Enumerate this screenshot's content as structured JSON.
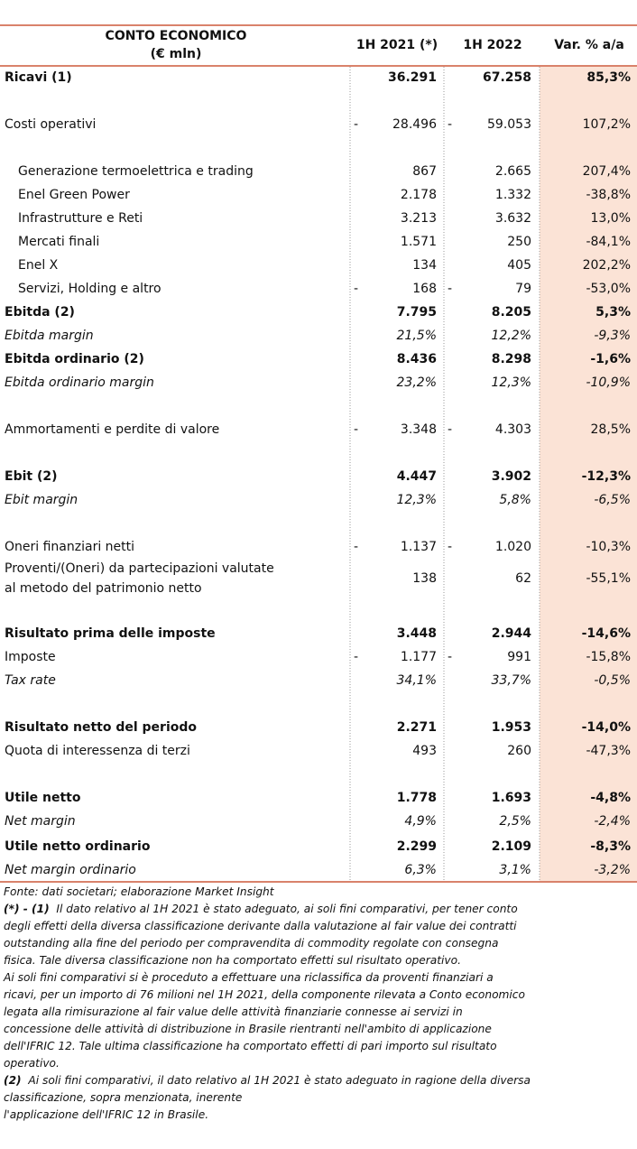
{
  "header": {
    "title": "CONTO ECONOMICO",
    "unit": "(€ mln)",
    "col1": "1H 2021 (*)",
    "col2": "1H 2022",
    "col3": "Var. % a/a"
  },
  "rows": [
    {
      "label": "Ricavi (1)",
      "style": "bold",
      "c1": "36.291",
      "c2": "67.258",
      "c3": "85,3%"
    },
    {
      "label": "Costi operativi",
      "s1": "-",
      "c1": "28.496",
      "s2": "-",
      "c2": "59.053",
      "c3": "107,2%"
    },
    {
      "label": "Generazione termoelettrica e trading",
      "style": "indent",
      "c1": "867",
      "c2": "2.665",
      "c3": "207,4%"
    },
    {
      "label": "Enel Green Power",
      "style": "indent",
      "c1": "2.178",
      "c2": "1.332",
      "c3": "-38,8%"
    },
    {
      "label": "Infrastrutture e Reti",
      "style": "indent",
      "c1": "3.213",
      "c2": "3.632",
      "c3": "13,0%"
    },
    {
      "label": "Mercati finali",
      "style": "indent",
      "c1": "1.571",
      "c2": "250",
      "c3": "-84,1%"
    },
    {
      "label": "Enel X",
      "style": "indent",
      "c1": "134",
      "c2": "405",
      "c3": "202,2%"
    },
    {
      "label": "Servizi, Holding e altro",
      "style": "indent",
      "s1": "-",
      "c1": "168",
      "s2": "-",
      "c2": "79",
      "c3": "-53,0%"
    },
    {
      "label": "Ebitda (2)",
      "style": "bold",
      "c1": "7.795",
      "c2": "8.205",
      "c3": "5,3%"
    },
    {
      "label": "Ebitda margin",
      "style": "italic",
      "c1": "21,5%",
      "c2": "12,2%",
      "c3": "-9,3%"
    },
    {
      "label": "Ebitda ordinario (2)",
      "style": "bold",
      "c1": "8.436",
      "c2": "8.298",
      "c3": "-1,6%"
    },
    {
      "label": "Ebitda ordinario margin",
      "style": "italic",
      "c1": "23,2%",
      "c2": "12,3%",
      "c3": "-10,9%"
    },
    {
      "label": "Ammortamenti e perdite di valore",
      "s1": "-",
      "c1": "3.348",
      "s2": "-",
      "c2": "4.303",
      "c3": "28,5%"
    },
    {
      "label": "Ebit (2)",
      "style": "bold",
      "c1": "4.447",
      "c2": "3.902",
      "c3": "-12,3%"
    },
    {
      "label": "Ebit margin",
      "style": "italic",
      "c1": "12,3%",
      "c2": "5,8%",
      "c3": "-6,5%"
    },
    {
      "label": "Oneri finanziari netti",
      "s1": "-",
      "c1": "1.137",
      "s2": "-",
      "c2": "1.020",
      "c3": "-10,3%"
    },
    {
      "label": [
        "Proventi/(Oneri) da partecipazioni valutate",
        "al metodo del patrimonio netto"
      ],
      "c1": "138",
      "c2": "62",
      "c3": "-55,1%"
    },
    {
      "label": "Risultato prima delle imposte",
      "style": "bold",
      "c1": "3.448",
      "c2": "2.944",
      "c3": "-14,6%"
    },
    {
      "label": "Imposte",
      "s1": "-",
      "c1": "1.177",
      "s2": "-",
      "c2": "991",
      "c3": "-15,8%"
    },
    {
      "label": "Tax rate",
      "style": "italic",
      "c1": "34,1%",
      "c2": "33,7%",
      "c3": "-0,5%"
    },
    {
      "label": "Risultato netto del periodo",
      "style": "bold",
      "c1": "2.271",
      "c2": "1.953",
      "c3": "-14,0%"
    },
    {
      "label": "Quota di interessenza di terzi",
      "c1": "493",
      "c2": "260",
      "c3": "-47,3%"
    },
    {
      "label": "Utile netto",
      "style": "bold",
      "c1": "1.778",
      "c2": "1.693",
      "c3": "-4,8%"
    },
    {
      "label": "Net margin",
      "style": "italic",
      "c1": "4,9%",
      "c2": "2,5%",
      "c3": "-2,4%"
    },
    {
      "label": "Utile netto ordinario",
      "style": "bold",
      "c1": "2.299",
      "c2": "2.109",
      "c3": "-8,3%"
    },
    {
      "label": "Net margin ordinario",
      "style": "italic",
      "c1": "6,3%",
      "c2": "3,1%",
      "c3": "-3,2%"
    }
  ],
  "notes": [
    {
      "text": "Fonte: dati societari; elaborazione Market Insight"
    },
    {
      "bold": "(*) - (1)",
      "text": "  Il dato relativo al 1H 2021 è stato adeguato, ai soli fini comparativi, per tener conto"
    },
    {
      "text": "degli effetti della diversa classificazione derivante dalla valutazione al fair value dei contratti"
    },
    {
      "text": "outstanding alla fine del periodo per compravendita di commodity regolate con consegna"
    },
    {
      "text": "fisica. Tale diversa classificazione non ha comportato effetti sul risultato operativo."
    },
    {
      "text": "Ai soli fini comparativi si è proceduto a effettuare una riclassifica da proventi finanziari a"
    },
    {
      "text": "ricavi, per un importo di 76 milioni nel 1H 2021, della componente rilevata a Conto economico"
    },
    {
      "text": "legata alla rimisurazione al fair value delle attività finanziarie connesse ai servizi in"
    },
    {
      "text": "concessione delle attività di distribuzione in Brasile rientranti nell'ambito di applicazione"
    },
    {
      "text": "dell'IFRIC 12. Tale ultima classificazione ha comportato effetti di pari importo sul risultato"
    },
    {
      "text": "operativo."
    },
    {
      "bold": "(2)",
      "text": "  Ai soli fini comparativi, il dato relativo al 1H 2021 è stato adeguato in ragione della diversa"
    },
    {
      "text": "classificazione, sopra menzionata, inerente"
    },
    {
      "text": "l'applicazione dell'IFRIC 12 in Brasile."
    }
  ]
}
